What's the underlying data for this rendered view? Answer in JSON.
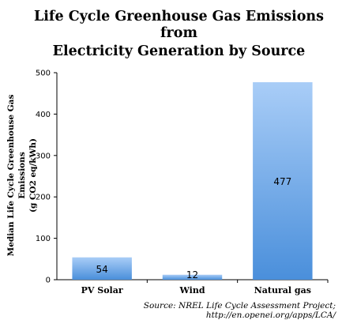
{
  "chart_data": {
    "type": "bar",
    "title_lines": [
      "Life Cycle Greenhouse Gas Emissions",
      "from",
      "Electricity Generation by Source"
    ],
    "ylabel_lines": [
      "Median Life Cycle Greenhouse Gas Emissions",
      "(g CO2 eq/kWh)"
    ],
    "xlabel": "",
    "categories": [
      "PV Solar",
      "Wind",
      "Natural gas"
    ],
    "values": [
      54,
      12,
      477
    ],
    "data_labels": [
      "54",
      "12",
      "477"
    ],
    "ylim": [
      0,
      500
    ],
    "yticks": [
      0,
      100,
      200,
      300,
      400,
      500
    ],
    "grid": false,
    "legend": "none",
    "bar_color_top": "#a9cdf7",
    "bar_color_bottom": "#4a8fdb",
    "source": "Source: NREL Life Cycle Assessment Project; http://en.openei.org/apps/LCA/"
  }
}
